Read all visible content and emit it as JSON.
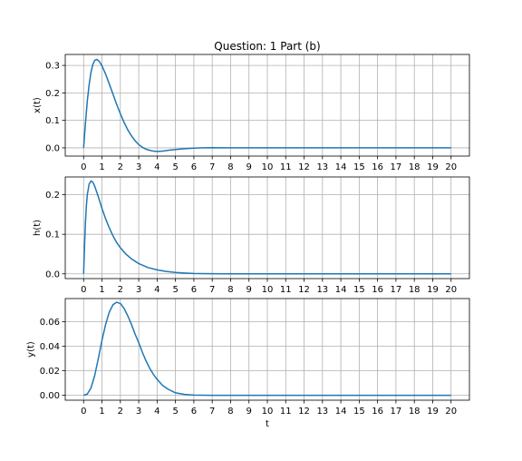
{
  "figure": {
    "title": "Question: 1 Part (b)",
    "xlabel": "t"
  },
  "chart_data": [
    {
      "type": "line",
      "title": "Question: 1 Part (b)",
      "xlabel": "",
      "ylabel": "x(t)",
      "xlim": [
        -1,
        21
      ],
      "ylim": [
        -0.03,
        0.34
      ],
      "xticks": [
        0,
        1,
        2,
        3,
        4,
        5,
        6,
        7,
        8,
        9,
        10,
        11,
        12,
        13,
        14,
        15,
        16,
        17,
        18,
        19,
        20
      ],
      "yticks": [
        0.0,
        0.1,
        0.2,
        0.3
      ],
      "ytick_labels": [
        "0.0",
        "0.1",
        "0.2",
        "0.3"
      ],
      "grid": true,
      "color": "#1f77b4",
      "series": [
        {
          "x": [
            0,
            0.1,
            0.2,
            0.3,
            0.4,
            0.5,
            0.6,
            0.7,
            0.8,
            0.9,
            1.0,
            1.2,
            1.4,
            1.6,
            1.8,
            2.0,
            2.2,
            2.4,
            2.6,
            2.8,
            3.0,
            3.2,
            3.4,
            3.6,
            3.8,
            4.0,
            4.3,
            4.6,
            5.0,
            5.5,
            6.0,
            6.5,
            7.0,
            8.0,
            9.0,
            10,
            12,
            14,
            16,
            18,
            20
          ],
          "y": [
            0,
            0.09,
            0.17,
            0.23,
            0.275,
            0.303,
            0.318,
            0.322,
            0.318,
            0.31,
            0.298,
            0.268,
            0.232,
            0.195,
            0.158,
            0.124,
            0.093,
            0.066,
            0.044,
            0.026,
            0.012,
            0.002,
            -0.005,
            -0.009,
            -0.012,
            -0.013,
            -0.012,
            -0.009,
            -0.006,
            -0.003,
            -0.001,
            0.0,
            0.0005,
            0.0,
            0,
            0,
            0,
            0,
            0,
            0,
            0
          ]
        }
      ]
    },
    {
      "type": "line",
      "title": "",
      "xlabel": "",
      "ylabel": "h(t)",
      "xlim": [
        -1,
        21
      ],
      "ylim": [
        -0.012,
        0.245
      ],
      "xticks": [
        0,
        1,
        2,
        3,
        4,
        5,
        6,
        7,
        8,
        9,
        10,
        11,
        12,
        13,
        14,
        15,
        16,
        17,
        18,
        19,
        20
      ],
      "yticks": [
        0.0,
        0.1,
        0.2
      ],
      "ytick_labels": [
        "0.0",
        "0.1",
        "0.2"
      ],
      "grid": true,
      "color": "#1f77b4",
      "series": [
        {
          "x": [
            0,
            0.05,
            0.1,
            0.15,
            0.2,
            0.3,
            0.4,
            0.5,
            0.6,
            0.8,
            1.0,
            1.2,
            1.4,
            1.6,
            1.8,
            2.0,
            2.3,
            2.6,
            3.0,
            3.5,
            4.0,
            4.5,
            5.0,
            5.5,
            6.0,
            7.0,
            8.0,
            9.0,
            10,
            12,
            14,
            16,
            18,
            20
          ],
          "y": [
            0,
            0.07,
            0.13,
            0.172,
            0.2,
            0.227,
            0.235,
            0.232,
            0.222,
            0.195,
            0.165,
            0.139,
            0.116,
            0.096,
            0.079,
            0.066,
            0.05,
            0.038,
            0.026,
            0.016,
            0.01,
            0.006,
            0.0035,
            0.002,
            0.001,
            0.0004,
            0.0001,
            0,
            0,
            0,
            0,
            0,
            0,
            0
          ]
        }
      ]
    },
    {
      "type": "line",
      "title": "",
      "xlabel": "t",
      "ylabel": "y(t)",
      "xlim": [
        -1,
        21
      ],
      "ylim": [
        -0.004,
        0.079
      ],
      "xticks": [
        0,
        1,
        2,
        3,
        4,
        5,
        6,
        7,
        8,
        9,
        10,
        11,
        12,
        13,
        14,
        15,
        16,
        17,
        18,
        19,
        20
      ],
      "yticks": [
        0.0,
        0.02,
        0.04,
        0.06
      ],
      "ytick_labels": [
        "0.00",
        "0.02",
        "0.04",
        "0.06"
      ],
      "grid": true,
      "color": "#1f77b4",
      "series": [
        {
          "x": [
            0,
            0.2,
            0.4,
            0.6,
            0.8,
            1.0,
            1.2,
            1.4,
            1.6,
            1.8,
            2.0,
            2.2,
            2.4,
            2.6,
            2.8,
            3.0,
            3.2,
            3.4,
            3.6,
            3.8,
            4.0,
            4.3,
            4.6,
            5.0,
            5.5,
            6.0,
            6.5,
            7.0,
            8.0,
            10,
            12,
            14,
            16,
            18,
            20
          ],
          "y": [
            0,
            0.001,
            0.006,
            0.016,
            0.03,
            0.045,
            0.058,
            0.068,
            0.074,
            0.076,
            0.075,
            0.071,
            0.065,
            0.058,
            0.05,
            0.043,
            0.035,
            0.028,
            0.022,
            0.017,
            0.013,
            0.008,
            0.005,
            0.002,
            0.0007,
            0.0002,
            0.0001,
            0,
            0,
            0,
            0,
            0,
            0,
            0,
            0
          ]
        }
      ]
    }
  ]
}
